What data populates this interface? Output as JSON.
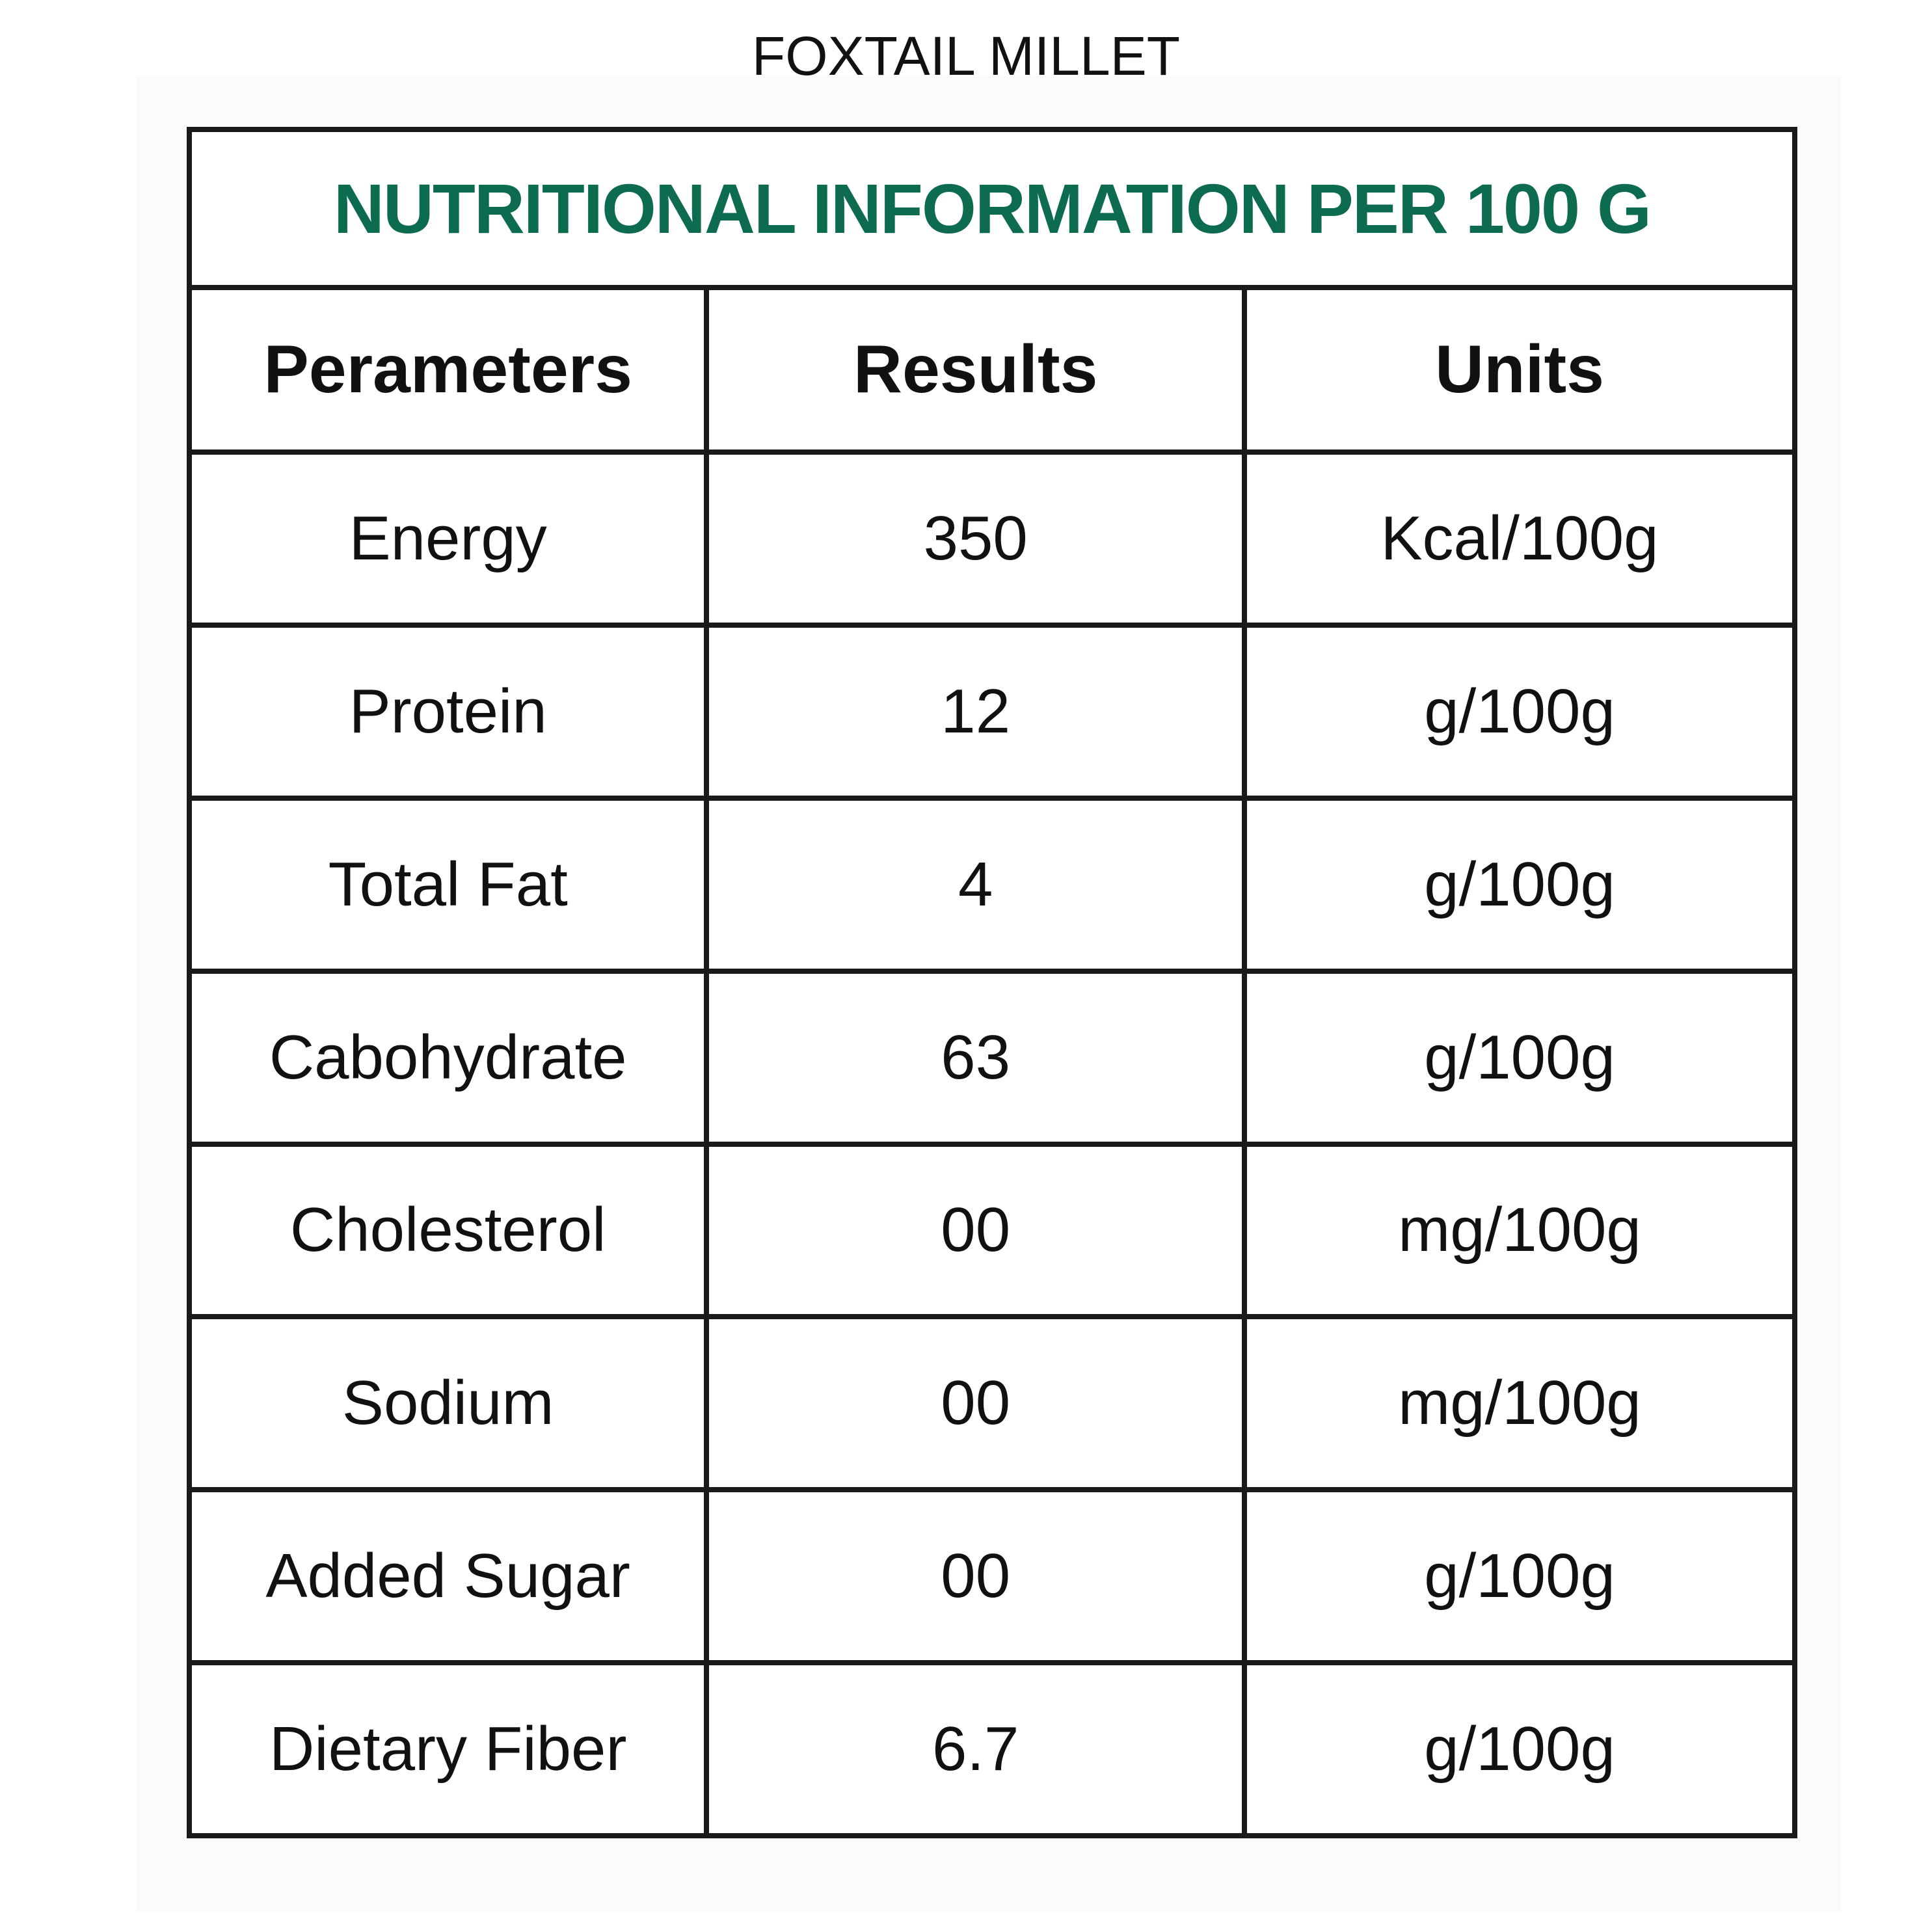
{
  "title": "FOXTAIL MILLET",
  "table": {
    "caption": "NUTRITIONAL INFORMATION PER 100 G",
    "columns": [
      "Perameters",
      "Results",
      "Units"
    ],
    "rows": [
      [
        "Energy",
        "350",
        "Kcal/100g"
      ],
      [
        "Protein",
        "12",
        "g/100g"
      ],
      [
        "Total Fat",
        "4",
        "g/100g"
      ],
      [
        "Cabohydrate",
        "63",
        "g/100g"
      ],
      [
        "Cholesterol",
        "00",
        "mg/100g"
      ],
      [
        "Sodium",
        "00",
        "mg/100g"
      ],
      [
        "Added Sugar",
        "00",
        "g/100g"
      ],
      [
        "Dietary Fiber",
        "6.7",
        "g/100g"
      ]
    ]
  }
}
